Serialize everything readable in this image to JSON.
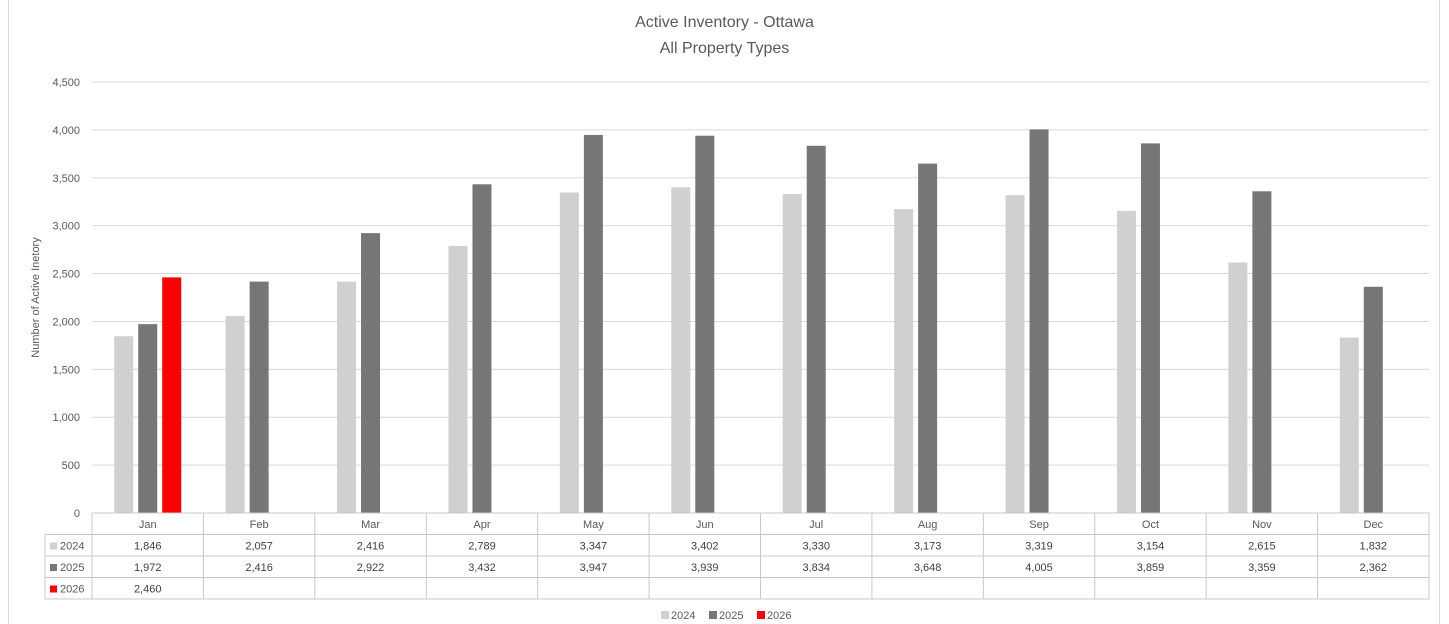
{
  "chart_data": {
    "type": "bar",
    "title": "Active Inventory - Ottawa",
    "subtitle": "All Property Types",
    "ylabel": "Number of Active Inetory",
    "xlabel": "",
    "ylim": [
      0,
      4500
    ],
    "yticks": [
      "0",
      "500",
      "1,000",
      "1,500",
      "2,000",
      "2,500",
      "3,000",
      "3,500",
      "4,000",
      "4,500"
    ],
    "ytick_values": [
      0,
      500,
      1000,
      1500,
      2000,
      2500,
      3000,
      3500,
      4000,
      4500
    ],
    "categories": [
      "Jan",
      "Feb",
      "Mar",
      "Apr",
      "May",
      "Jun",
      "Jul",
      "Aug",
      "Sep",
      "Oct",
      "Nov",
      "Dec"
    ],
    "grid": true,
    "legend_position": "bottom",
    "data_table": true,
    "series": [
      {
        "name": "2024",
        "color": "#d0d0d0",
        "values": [
          1846,
          2057,
          2416,
          2789,
          3347,
          3402,
          3330,
          3173,
          3319,
          3154,
          2615,
          1832
        ],
        "labels": [
          "1,846",
          "2,057",
          "2,416",
          "2,789",
          "3,347",
          "3,402",
          "3,330",
          "3,173",
          "3,319",
          "3,154",
          "2,615",
          "1,832"
        ]
      },
      {
        "name": "2025",
        "color": "#767676",
        "values": [
          1972,
          2416,
          2922,
          3432,
          3947,
          3939,
          3834,
          3648,
          4005,
          3859,
          3359,
          2362
        ],
        "labels": [
          "1,972",
          "2,416",
          "2,922",
          "3,432",
          "3,947",
          "3,939",
          "3,834",
          "3,648",
          "4,005",
          "3,859",
          "3,359",
          "2,362"
        ]
      },
      {
        "name": "2026",
        "color": "#ff0000",
        "values": [
          2460,
          null,
          null,
          null,
          null,
          null,
          null,
          null,
          null,
          null,
          null,
          null
        ],
        "labels": [
          "2,460",
          "",
          "",
          "",
          "",
          "",
          "",
          "",
          "",
          "",
          "",
          ""
        ]
      }
    ]
  }
}
